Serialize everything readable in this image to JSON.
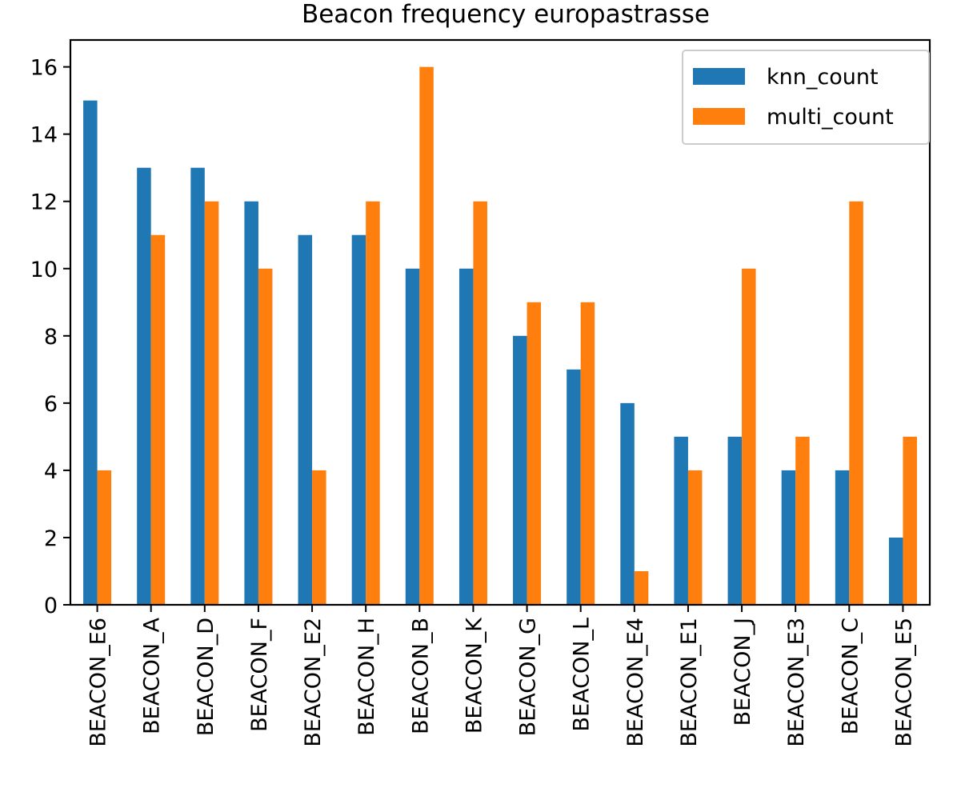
{
  "chart_data": {
    "type": "bar",
    "title": "Beacon frequency europastrasse",
    "xlabel": "",
    "ylabel": "",
    "categories": [
      "BEACON_E6",
      "BEACON_A",
      "BEACON_D",
      "BEACON_F",
      "BEACON_E2",
      "BEACON_H",
      "BEACON_B",
      "BEACON_K",
      "BEACON_G",
      "BEACON_L",
      "BEACON_E4",
      "BEACON_E1",
      "BEACON_J",
      "BEACON_E3",
      "BEACON_C",
      "BEACON_E5"
    ],
    "series": [
      {
        "name": "knn_count",
        "color": "#1f77b4",
        "values": [
          15,
          13,
          13,
          12,
          11,
          11,
          10,
          10,
          8,
          7,
          6,
          5,
          5,
          4,
          4,
          2
        ]
      },
      {
        "name": "multi_count",
        "color": "#ff7f0e",
        "values": [
          4,
          11,
          12,
          10,
          4,
          12,
          16,
          12,
          9,
          9,
          1,
          4,
          10,
          5,
          12,
          5
        ]
      }
    ],
    "ylim": [
      0,
      16.8
    ],
    "yticks": [
      0,
      2,
      4,
      6,
      8,
      10,
      12,
      14,
      16
    ],
    "grid": false,
    "legend_position": "top-right"
  }
}
